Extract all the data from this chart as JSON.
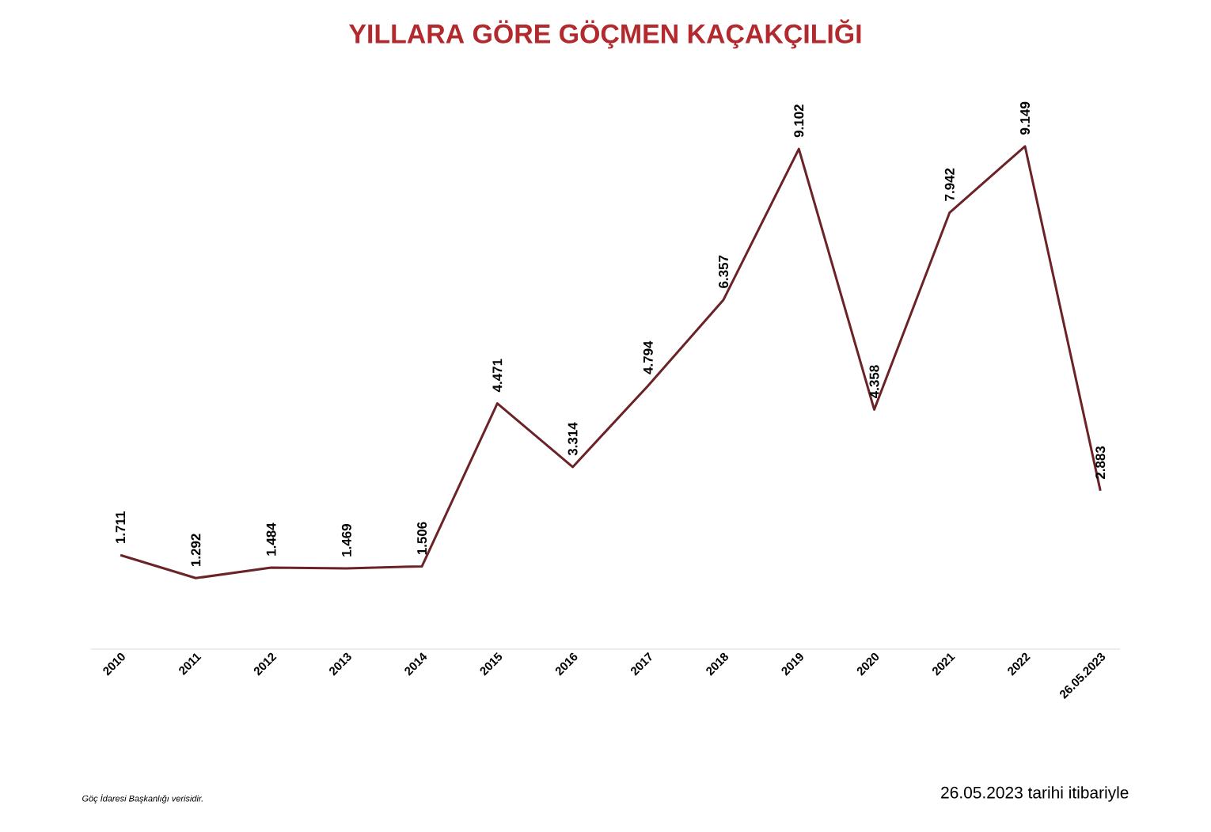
{
  "chart_data": {
    "type": "line",
    "title": "YILLARA GÖRE GÖÇMEN KAÇAKÇILIĞI",
    "categories": [
      "2010",
      "2011",
      "2012",
      "2013",
      "2014",
      "2015",
      "2016",
      "2017",
      "2018",
      "2019",
      "2020",
      "2021",
      "2022",
      "26.05.2023"
    ],
    "series": [
      {
        "color": "#6b2328",
        "values": [
          1711,
          1292,
          1484,
          1469,
          1506,
          4471,
          3314,
          4794,
          6357,
          9102,
          4358,
          7942,
          9149,
          2883
        ],
        "value_labels": [
          "1.711",
          "1.292",
          "1.484",
          "1.469",
          "1.506",
          "4.471",
          "3.314",
          "4.794",
          "6.357",
          "9.102",
          "4.358",
          "7.942",
          "9.149",
          "2.883"
        ]
      }
    ],
    "grid": false,
    "marker": "none",
    "line_style": "solid",
    "annotations": [
      "Göç İdaresi Başkanlığı verisidir.",
      "26.05.2023 tarihi itibariyle"
    ]
  }
}
